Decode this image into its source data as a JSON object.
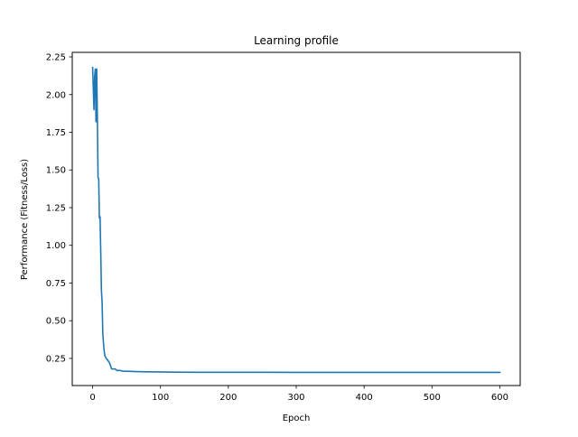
{
  "chart_data": {
    "type": "line",
    "title": "Learning profile",
    "xlabel": "Epoch",
    "ylabel": "Performance (Fitness/Loss)",
    "xlim": [
      -30,
      630
    ],
    "ylim": [
      0.07,
      2.28
    ],
    "xticks": [
      0,
      100,
      200,
      300,
      400,
      500,
      600
    ],
    "xtick_labels": [
      "0",
      "100",
      "200",
      "300",
      "400",
      "500",
      "600"
    ],
    "yticks": [
      0.25,
      0.5,
      0.75,
      1.0,
      1.25,
      1.5,
      1.75,
      2.0,
      2.25
    ],
    "ytick_labels": [
      "0.25",
      "0.50",
      "0.75",
      "1.00",
      "1.25",
      "1.50",
      "1.75",
      "2.00",
      "2.25"
    ],
    "grid": false,
    "line_color": "#1f77b4",
    "series": [
      {
        "x": [
          0,
          2,
          3,
          4,
          5,
          6,
          7,
          8,
          9,
          10,
          11,
          12,
          13,
          14,
          15,
          16,
          17,
          18,
          19,
          20,
          22,
          25,
          28,
          30,
          33,
          36,
          40,
          45,
          50,
          60,
          70,
          80,
          100,
          120,
          150,
          200,
          250,
          300,
          400,
          500,
          600
        ],
        "y": [
          2.18,
          1.9,
          2.12,
          2.17,
          1.82,
          2.17,
          1.85,
          1.45,
          1.44,
          1.18,
          1.19,
          0.95,
          0.7,
          0.62,
          0.42,
          0.35,
          0.3,
          0.27,
          0.26,
          0.25,
          0.24,
          0.22,
          0.18,
          0.18,
          0.18,
          0.17,
          0.17,
          0.165,
          0.165,
          0.163,
          0.162,
          0.161,
          0.16,
          0.159,
          0.158,
          0.158,
          0.158,
          0.157,
          0.157,
          0.157,
          0.157
        ]
      }
    ]
  }
}
